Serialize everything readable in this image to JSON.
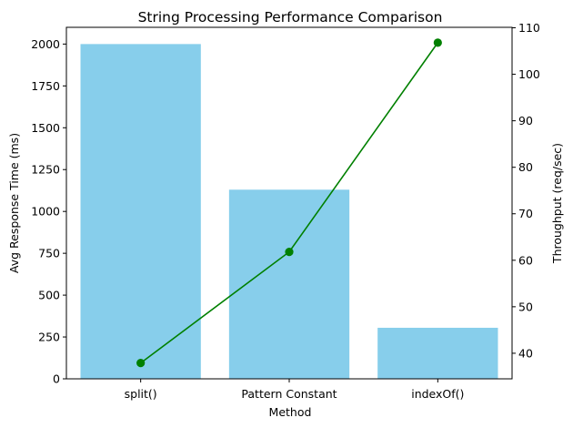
{
  "chart_data": {
    "type": "bar",
    "title": "String Processing Performance Comparison",
    "xlabel": "Method",
    "ylabel": "Avg Response Time (ms)",
    "y2label": "Throughput (req/sec)",
    "categories": [
      "split()",
      "Pattern Constant",
      "indexOf()"
    ],
    "ylim": [
      0,
      2100
    ],
    "y2lim": [
      34.5,
      110.1
    ],
    "yticks": [
      0,
      250,
      500,
      750,
      1000,
      1250,
      1500,
      1750,
      2000
    ],
    "y2ticks": [
      40,
      50,
      60,
      70,
      80,
      90,
      100,
      110
    ],
    "grid": false,
    "series": [
      {
        "type": "bar",
        "axis": "left",
        "color": "#87ceeb",
        "values": [
          2000,
          1130,
          305
        ]
      },
      {
        "type": "line",
        "axis": "right",
        "color": "#008000",
        "marker": "circle",
        "values": [
          37.9,
          61.8,
          106.8
        ]
      }
    ]
  }
}
